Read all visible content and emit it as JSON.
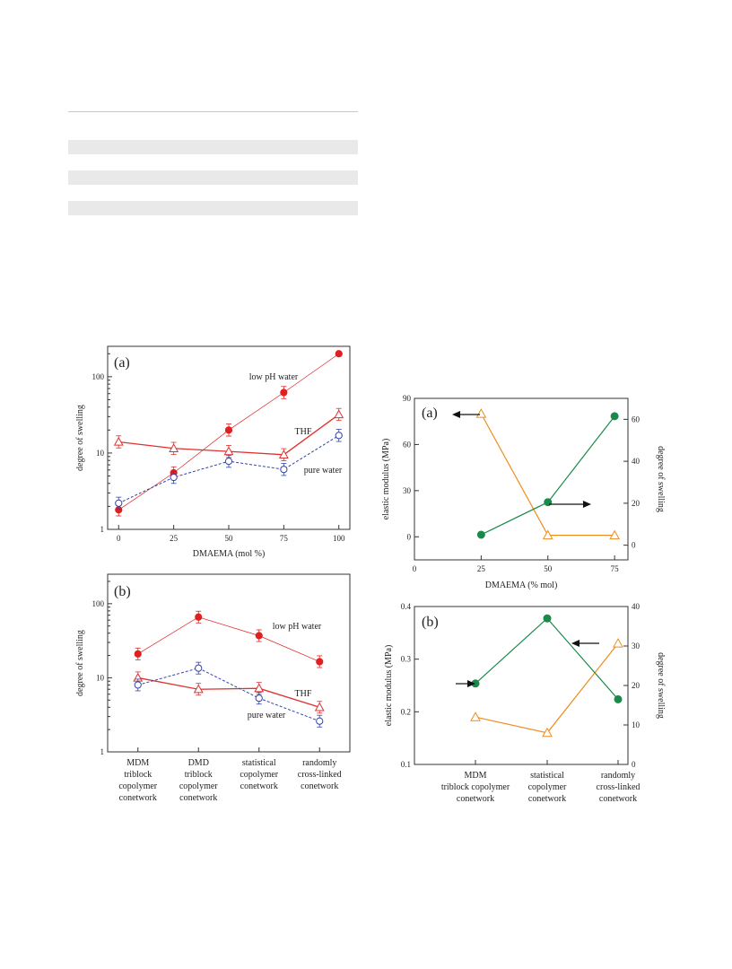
{
  "chart_data": [
    {
      "type": "line",
      "panel_label": "(a)",
      "xlabel": "DMAEMA (mol %)",
      "ylabel": "degree of swelling",
      "x": [
        0,
        25,
        50,
        75,
        100
      ],
      "xlim": [
        -5,
        105
      ],
      "ylim": [
        1,
        250
      ],
      "yscale": "log",
      "xticks": [
        "0",
        "25",
        "50",
        "75",
        "100"
      ],
      "yticks": [
        "1",
        "10",
        "100"
      ],
      "series": [
        {
          "name": "low pH water",
          "values": [
            1.8,
            5.5,
            20,
            62,
            200
          ],
          "color": "#e02020",
          "marker": "filled-circle",
          "line": "solid-thin"
        },
        {
          "name": "THF",
          "values": [
            14,
            11.5,
            10.5,
            9.5,
            32
          ],
          "color": "#e03030",
          "marker": "open-triangle",
          "line": "solid"
        },
        {
          "name": "pure water",
          "values": [
            2.2,
            4.8,
            7.8,
            6.1,
            17
          ],
          "color": "#3344aa",
          "marker": "open-circle",
          "line": "dashed"
        }
      ]
    },
    {
      "type": "line",
      "panel_label": "(b)",
      "ylabel": "degree of swelling",
      "categories": [
        [
          "MDM",
          "triblock",
          "copolymer",
          "conetwork"
        ],
        [
          "DMD",
          "triblock",
          "copolymer",
          "conetwork"
        ],
        [
          "statistical",
          "copolymer",
          "conetwork"
        ],
        [
          "randomly",
          "cross-linked",
          "conetwork"
        ]
      ],
      "ylim": [
        1,
        250
      ],
      "yscale": "log",
      "yticks": [
        "1",
        "10",
        "100"
      ],
      "series": [
        {
          "name": "low pH water",
          "values": [
            21,
            66,
            37,
            16.5
          ],
          "color": "#e02020",
          "marker": "filled-circle",
          "line": "solid-thin"
        },
        {
          "name": "THF",
          "values": [
            10,
            7,
            7.2,
            4
          ],
          "color": "#e03030",
          "marker": "open-triangle",
          "line": "solid"
        },
        {
          "name": "pure water",
          "values": [
            8,
            13.5,
            5.3,
            2.6
          ],
          "color": "#3344aa",
          "marker": "open-circle",
          "line": "dashed"
        }
      ]
    },
    {
      "type": "line",
      "panel_label": "(a)",
      "xlabel": "DMAEMA (% mol)",
      "ylabel_left": "elastic modulus (MPa)",
      "ylabel_right": "degree of swelling",
      "x": [
        25,
        50,
        75
      ],
      "xlim": [
        0,
        80
      ],
      "ylim_left": [
        -15,
        90
      ],
      "ylim_right": [
        -7,
        70
      ],
      "xticks": [
        "0",
        "25",
        "50",
        "75"
      ],
      "yticks_left": [
        "0",
        "30",
        "60",
        "90"
      ],
      "yticks_right": [
        "0",
        "20",
        "40",
        "60"
      ],
      "series": [
        {
          "axis": "left",
          "values": [
            80,
            1,
            1
          ],
          "color": "#f08c1e",
          "marker": "open-triangle"
        },
        {
          "axis": "right",
          "values": [
            5,
            20.5,
            61.5
          ],
          "color": "#1a8a4a",
          "marker": "filled-circle"
        }
      ]
    },
    {
      "type": "line",
      "panel_label": "(b)",
      "ylabel_left": "elastic modulus (MPa)",
      "ylabel_right": "degree of swelling",
      "categories": [
        [
          "MDM",
          "triblock copolymer",
          "conetwork"
        ],
        [
          "statistical",
          "copolymer",
          "conetwork"
        ],
        [
          "randomly",
          "cross-linked",
          "conetwork"
        ]
      ],
      "ylim_left": [
        0.1,
        0.4
      ],
      "ylim_right": [
        0,
        40
      ],
      "yticks_left": [
        "0.1",
        "0.2",
        "0.3",
        "0.4"
      ],
      "yticks_right": [
        "0",
        "10",
        "20",
        "30",
        "40"
      ],
      "series": [
        {
          "axis": "left",
          "values": [
            0.19,
            0.16,
            0.33
          ],
          "color": "#f08c1e",
          "marker": "open-triangle"
        },
        {
          "axis": "right",
          "values": [
            20.5,
            37,
            16.5
          ],
          "color": "#1a8a4a",
          "marker": "filled-circle"
        }
      ]
    }
  ]
}
